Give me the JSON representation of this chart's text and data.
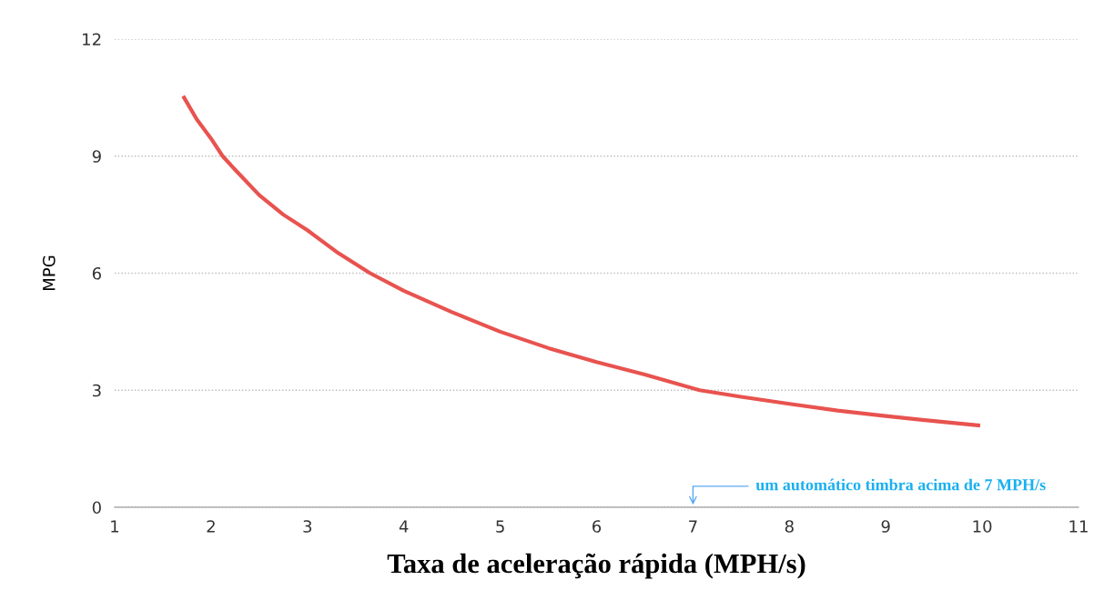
{
  "chart_data": {
    "type": "line",
    "xlabel": "Taxa de aceleração rápida (MPH/s)",
    "ylabel": "MPG",
    "series": [
      {
        "color": "#e8534f",
        "x": [
          1.72,
          1.85,
          2.0,
          2.12,
          2.25,
          2.5,
          2.75,
          3.0,
          3.3,
          3.65,
          4.0,
          4.5,
          5.0,
          5.5,
          6.0,
          6.5,
          7.07,
          7.5,
          8.0,
          8.5,
          9.0,
          9.5,
          9.96
        ],
        "values": [
          10.5,
          9.95,
          9.45,
          9.0,
          8.65,
          8.0,
          7.5,
          7.1,
          6.55,
          6.0,
          5.55,
          5.0,
          4.5,
          4.08,
          3.72,
          3.4,
          3.0,
          2.83,
          2.65,
          2.48,
          2.34,
          2.21,
          2.1
        ]
      }
    ],
    "xlim": [
      1,
      11
    ],
    "xticks": [
      1,
      2,
      3,
      4,
      5,
      6,
      7,
      8,
      9,
      10,
      11
    ],
    "ylim": [
      0,
      12
    ],
    "yticks": [
      0,
      3,
      6,
      9,
      12
    ],
    "grid": "y",
    "legend": false,
    "marker": "none",
    "line_style": "solid",
    "annotations": [
      "um automático timbra acima de 7 MPH/s"
    ]
  }
}
